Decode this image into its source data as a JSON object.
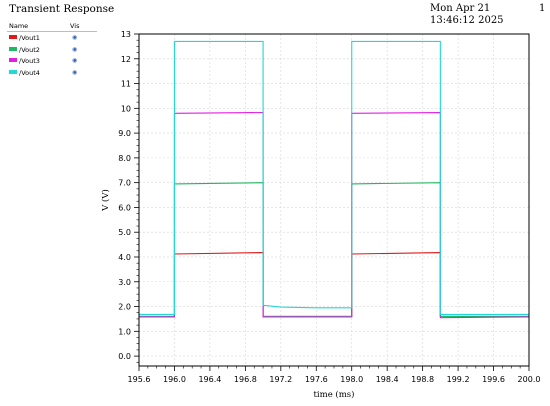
{
  "header": {
    "title": "Transient Response",
    "timestamp": "Mon Apr 21 13:46:12 2025",
    "page": "1"
  },
  "legend": {
    "name_header": "Name",
    "vis_header": "Vis",
    "items": [
      {
        "label": "/Vout1",
        "color": "#e01818",
        "icon": "eye-icon"
      },
      {
        "label": "/Vout2",
        "color": "#20b860",
        "icon": "eye-icon"
      },
      {
        "label": "/Vout3",
        "color": "#e020e0",
        "icon": "eye-icon"
      },
      {
        "label": "/Vout4",
        "color": "#20d8d8",
        "icon": "eye-icon"
      }
    ]
  },
  "chart_data": {
    "type": "line",
    "xlabel": "time (ms)",
    "ylabel": "V (V)",
    "xlim": [
      195.6,
      200.0
    ],
    "ylim": [
      -0.4,
      13.0
    ],
    "xticks": [
      "195.6",
      "196.0",
      "196.4",
      "196.8",
      "197.2",
      "197.6",
      "198.0",
      "198.4",
      "198.8",
      "199.2",
      "199.6",
      "200.0"
    ],
    "yticks": [
      "0.0",
      "1.0",
      "2.0",
      "3.0",
      "4.0",
      "5.0",
      "6.0",
      "7.0",
      "8.0",
      "9.0",
      "10",
      "11",
      "12",
      "13"
    ],
    "grid": true,
    "legend": "top-left",
    "series": [
      {
        "name": "/Vout1",
        "color": "#e01818",
        "x": [
          195.6,
          196.0,
          196.0,
          197.0,
          197.0,
          198.0,
          198.0,
          199.0,
          199.0,
          200.0
        ],
        "y": [
          1.6,
          1.6,
          4.12,
          4.18,
          1.6,
          1.6,
          4.12,
          4.18,
          1.6,
          1.6
        ]
      },
      {
        "name": "/Vout2",
        "color": "#20b860",
        "x": [
          195.6,
          196.0,
          196.0,
          197.0,
          197.0,
          198.0,
          198.0,
          199.0,
          199.0,
          200.0
        ],
        "y": [
          1.6,
          1.6,
          6.95,
          7.0,
          1.6,
          1.6,
          6.95,
          7.0,
          1.6,
          1.6
        ]
      },
      {
        "name": "/Vout3",
        "color": "#e020e0",
        "x": [
          195.6,
          196.0,
          196.0,
          197.0,
          197.0,
          198.0,
          198.0,
          199.0,
          199.0,
          200.0
        ],
        "y": [
          1.58,
          1.58,
          9.8,
          9.83,
          1.58,
          1.58,
          9.8,
          9.83,
          1.55,
          1.58
        ]
      },
      {
        "name": "/Vout4",
        "color": "#20d8d8",
        "x": [
          195.6,
          196.0,
          196.0,
          197.0,
          197.0,
          197.2,
          197.6,
          198.0,
          198.0,
          199.0,
          199.0,
          200.0
        ],
        "y": [
          1.68,
          1.68,
          12.7,
          12.7,
          2.05,
          1.98,
          1.95,
          1.95,
          12.7,
          12.7,
          1.68,
          1.68
        ]
      }
    ]
  }
}
